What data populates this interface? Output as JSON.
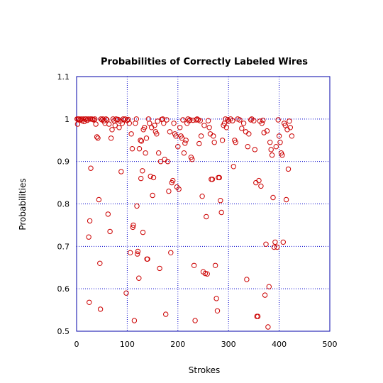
{
  "chart_data": {
    "type": "scatter",
    "title": "Probabilities of Correctly Labeled Wires",
    "xlabel": "Strokes",
    "ylabel": "Probabilities",
    "xlim": [
      0,
      500
    ],
    "ylim": [
      0.5,
      1.1
    ],
    "xticks": [
      0,
      100,
      200,
      300,
      400,
      500
    ],
    "yticks": [
      0.5,
      0.6,
      0.7,
      0.8,
      0.9,
      1,
      1.1
    ],
    "xtick_labels": [
      "0",
      "100",
      "200",
      "300",
      "400",
      "500"
    ],
    "ytick_labels": [
      "0.5",
      "0.6",
      "0.7",
      "0.8",
      "0.9",
      "1",
      "1.1"
    ],
    "grid": true,
    "legend": "none",
    "colors": {
      "frame": "#0000aa",
      "grid": "#0000cc",
      "marker": "#cc0000"
    },
    "series": [
      {
        "points": [
          [
            1,
            1.0
          ],
          [
            2,
            0.988
          ],
          [
            3,
            1.0
          ],
          [
            5,
            1.0
          ],
          [
            7,
            0.998
          ],
          [
            9,
            1.0
          ],
          [
            11,
            0.996
          ],
          [
            13,
            1.0
          ],
          [
            15,
            0.994
          ],
          [
            17,
            1.0
          ],
          [
            19,
            1.0
          ],
          [
            21,
            0.997
          ],
          [
            23,
            1.0
          ],
          [
            24,
            0.722
          ],
          [
            25,
            0.568
          ],
          [
            26,
            0.76
          ],
          [
            27,
            1.0
          ],
          [
            28,
            0.884
          ],
          [
            30,
            1.0
          ],
          [
            32,
            0.999
          ],
          [
            34,
            0.998
          ],
          [
            36,
            1.0
          ],
          [
            38,
            0.988
          ],
          [
            40,
            0.958
          ],
          [
            42,
            0.955
          ],
          [
            44,
            0.81
          ],
          [
            46,
            0.66
          ],
          [
            47,
            0.552
          ],
          [
            48,
            1.0
          ],
          [
            50,
            0.998
          ],
          [
            52,
            1.0
          ],
          [
            54,
            0.996
          ],
          [
            56,
            0.99
          ],
          [
            58,
            1.0
          ],
          [
            60,
            0.998
          ],
          [
            62,
            0.776
          ],
          [
            64,
            0.988
          ],
          [
            66,
            0.735
          ],
          [
            68,
            0.955
          ],
          [
            70,
            0.975
          ],
          [
            72,
            1.0
          ],
          [
            74,
            0.996
          ],
          [
            76,
            0.985
          ],
          [
            78,
            1.0
          ],
          [
            80,
            0.998
          ],
          [
            82,
            0.999
          ],
          [
            84,
            0.98
          ],
          [
            86,
            0.995
          ],
          [
            88,
            0.876
          ],
          [
            90,
            0.99
          ],
          [
            92,
            1.0
          ],
          [
            94,
            0.998
          ],
          [
            96,
            1.0
          ],
          [
            98,
            0.59
          ],
          [
            100,
            0.997
          ],
          [
            102,
            0.999
          ],
          [
            104,
            0.99
          ],
          [
            106,
            0.685
          ],
          [
            108,
            0.965
          ],
          [
            110,
            0.93
          ],
          [
            111,
            0.745
          ],
          [
            112,
            0.75
          ],
          [
            114,
            0.525
          ],
          [
            116,
            0.99
          ],
          [
            118,
            1.0
          ],
          [
            119,
            0.795
          ],
          [
            120,
            0.682
          ],
          [
            121,
            0.688
          ],
          [
            123,
            0.625
          ],
          [
            124,
            0.93
          ],
          [
            126,
            0.95
          ],
          [
            127,
            0.86
          ],
          [
            128,
            0.948
          ],
          [
            130,
            0.878
          ],
          [
            131,
            0.733
          ],
          [
            132,
            0.975
          ],
          [
            134,
            0.98
          ],
          [
            136,
            0.92
          ],
          [
            138,
            0.955
          ],
          [
            139,
            0.67
          ],
          [
            140,
            0.67
          ],
          [
            142,
            1.0
          ],
          [
            144,
            0.99
          ],
          [
            146,
            0.865
          ],
          [
            148,
            0.98
          ],
          [
            150,
            0.82
          ],
          [
            152,
            0.862
          ],
          [
            154,
            0.985
          ],
          [
            156,
            0.97
          ],
          [
            158,
            0.965
          ],
          [
            160,
            0.995
          ],
          [
            162,
            0.92
          ],
          [
            164,
            0.648
          ],
          [
            166,
            0.9
          ],
          [
            168,
            0.999
          ],
          [
            170,
            1.0
          ],
          [
            172,
            0.99
          ],
          [
            174,
            0.905
          ],
          [
            176,
            0.54
          ],
          [
            178,
            0.998
          ],
          [
            180,
            0.9
          ],
          [
            182,
            0.83
          ],
          [
            184,
            0.97
          ],
          [
            186,
            0.685
          ],
          [
            188,
            0.85
          ],
          [
            190,
            0.855
          ],
          [
            192,
            0.99
          ],
          [
            194,
            0.965
          ],
          [
            196,
            0.96
          ],
          [
            198,
            0.84
          ],
          [
            200,
            0.935
          ],
          [
            202,
            0.835
          ],
          [
            204,
            0.98
          ],
          [
            206,
            0.96
          ],
          [
            208,
            0.955
          ],
          [
            210,
            0.998
          ],
          [
            212,
            0.92
          ],
          [
            214,
            0.943
          ],
          [
            216,
            0.95
          ],
          [
            218,
            0.99
          ],
          [
            220,
            1.0
          ],
          [
            222,
            0.996
          ],
          [
            224,
            0.998
          ],
          [
            226,
            0.91
          ],
          [
            228,
            0.905
          ],
          [
            230,
            0.997
          ],
          [
            232,
            0.655
          ],
          [
            234,
            0.525
          ],
          [
            236,
            0.998
          ],
          [
            238,
            1.0
          ],
          [
            240,
            0.998
          ],
          [
            242,
            0.942
          ],
          [
            244,
            0.996
          ],
          [
            246,
            0.96
          ],
          [
            248,
            0.818
          ],
          [
            250,
            0.64
          ],
          [
            252,
            0.985
          ],
          [
            254,
            0.636
          ],
          [
            256,
            0.77
          ],
          [
            258,
            0.635
          ],
          [
            260,
            0.996
          ],
          [
            262,
            0.98
          ],
          [
            264,
            0.965
          ],
          [
            266,
            0.858
          ],
          [
            268,
            0.858
          ],
          [
            270,
            0.96
          ],
          [
            272,
            0.945
          ],
          [
            274,
            0.655
          ],
          [
            276,
            0.577
          ],
          [
            278,
            0.548
          ],
          [
            280,
            0.862
          ],
          [
            282,
            0.862
          ],
          [
            284,
            0.808
          ],
          [
            286,
            0.78
          ],
          [
            288,
            0.95
          ],
          [
            290,
            0.985
          ],
          [
            292,
            0.99
          ],
          [
            294,
            1.0
          ],
          [
            296,
            0.98
          ],
          [
            298,
            0.998
          ],
          [
            300,
            0.995
          ],
          [
            304,
            1.0
          ],
          [
            308,
            0.996
          ],
          [
            310,
            0.888
          ],
          [
            312,
            0.95
          ],
          [
            314,
            0.945
          ],
          [
            318,
            1.0
          ],
          [
            322,
            0.998
          ],
          [
            326,
            0.978
          ],
          [
            330,
            0.99
          ],
          [
            334,
            0.97
          ],
          [
            336,
            0.622
          ],
          [
            338,
            0.935
          ],
          [
            340,
            0.965
          ],
          [
            344,
            0.998
          ],
          [
            346,
            1.0
          ],
          [
            350,
            0.996
          ],
          [
            352,
            0.928
          ],
          [
            354,
            0.85
          ],
          [
            356,
            0.535
          ],
          [
            358,
            0.535
          ],
          [
            360,
            0.855
          ],
          [
            362,
            0.995
          ],
          [
            364,
            0.842
          ],
          [
            366,
            0.99
          ],
          [
            368,
            0.997
          ],
          [
            370,
            0.968
          ],
          [
            372,
            0.585
          ],
          [
            374,
            0.705
          ],
          [
            376,
            0.972
          ],
          [
            378,
            0.51
          ],
          [
            380,
            0.605
          ],
          [
            382,
            0.945
          ],
          [
            384,
            0.928
          ],
          [
            386,
            0.915
          ],
          [
            388,
            0.815
          ],
          [
            390,
            0.698
          ],
          [
            392,
            0.71
          ],
          [
            394,
            0.935
          ],
          [
            396,
            0.698
          ],
          [
            398,
            0.998
          ],
          [
            400,
            0.96
          ],
          [
            402,
            0.945
          ],
          [
            404,
            0.92
          ],
          [
            406,
            0.915
          ],
          [
            408,
            0.71
          ],
          [
            410,
            0.99
          ],
          [
            412,
            0.985
          ],
          [
            414,
            0.81
          ],
          [
            416,
            0.975
          ],
          [
            418,
            0.882
          ],
          [
            420,
            0.995
          ],
          [
            422,
            0.98
          ],
          [
            425,
            0.96
          ]
        ]
      }
    ]
  }
}
